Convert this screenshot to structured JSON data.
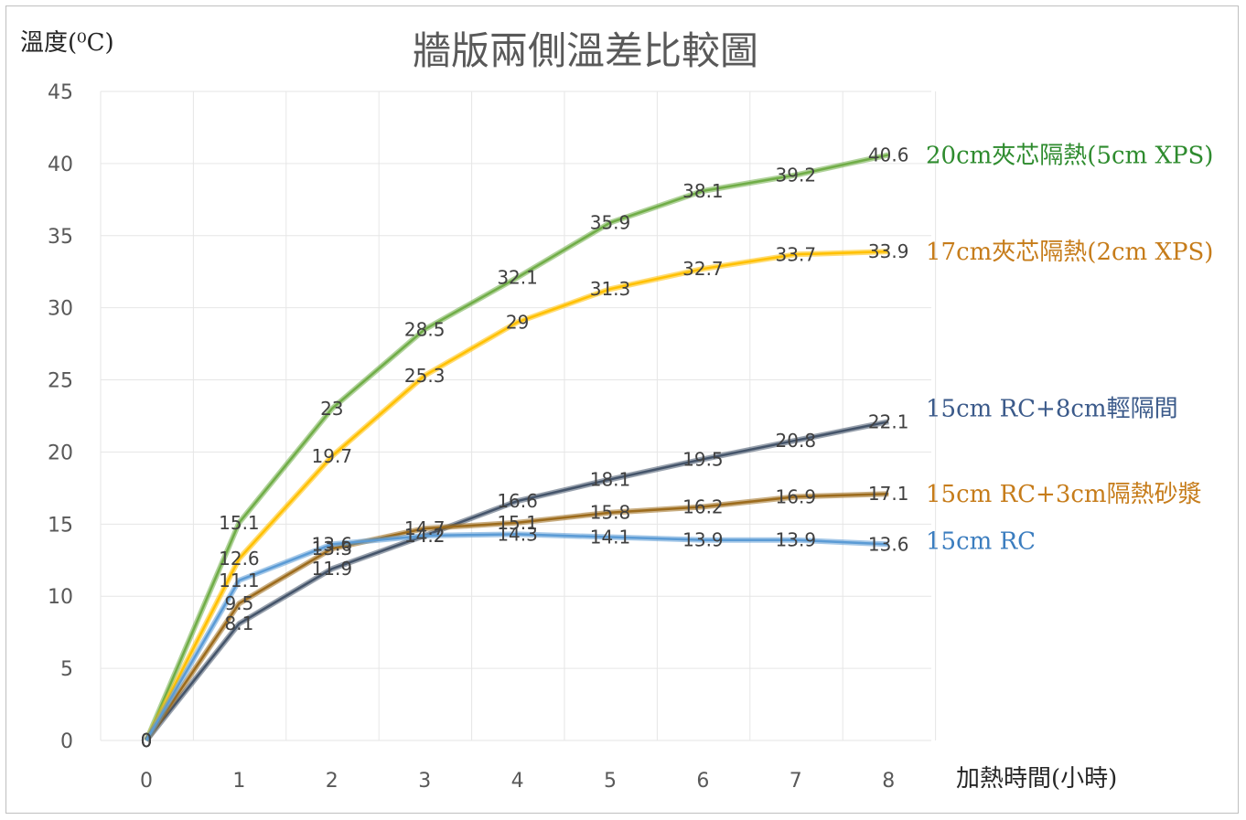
{
  "chart_data": {
    "type": "line",
    "title": "牆版兩側溫差比較圖",
    "ylabel": "溫度(⁰C)",
    "xlabel": "加熱時間(小時)",
    "x": [
      0,
      1,
      2,
      3,
      4,
      5,
      6,
      7,
      8
    ],
    "ylim": [
      0,
      45
    ],
    "yticks": [
      0,
      5,
      10,
      15,
      20,
      25,
      30,
      35,
      40,
      45
    ],
    "grid": true,
    "legend": "right-of-line-ends",
    "series": [
      {
        "name": "20cm夾芯隔熱(5cm XPS)",
        "color": "#70ad47",
        "labelColor": "#2e8b2e",
        "values": [
          0,
          15.1,
          23,
          28.5,
          32.1,
          35.9,
          38.1,
          39.2,
          40.6
        ]
      },
      {
        "name": "17cm夾芯隔熱(2cm XPS)",
        "color": "#ffc000",
        "labelColor": "#c67c1a",
        "values": [
          0,
          12.6,
          19.7,
          25.3,
          29,
          31.3,
          32.7,
          33.7,
          33.9
        ]
      },
      {
        "name": "15cm RC+8cm輕隔間",
        "color": "#44546a",
        "labelColor": "#3b5a8a",
        "values": [
          0,
          8.1,
          11.9,
          14.2,
          16.6,
          18.1,
          19.5,
          20.8,
          22.1
        ]
      },
      {
        "name": "15cm RC+3cm隔熱砂漿",
        "color": "#9c6b1c",
        "labelColor": "#c67c1a",
        "values": [
          0,
          9.5,
          13.3,
          14.7,
          15.1,
          15.8,
          16.2,
          16.9,
          17.1
        ]
      },
      {
        "name": "15cm RC",
        "color": "#5b9bd5",
        "labelColor": "#3b7dbf",
        "values": [
          0,
          11.1,
          13.6,
          14.2,
          14.3,
          14.1,
          13.9,
          13.9,
          13.6
        ]
      }
    ]
  }
}
